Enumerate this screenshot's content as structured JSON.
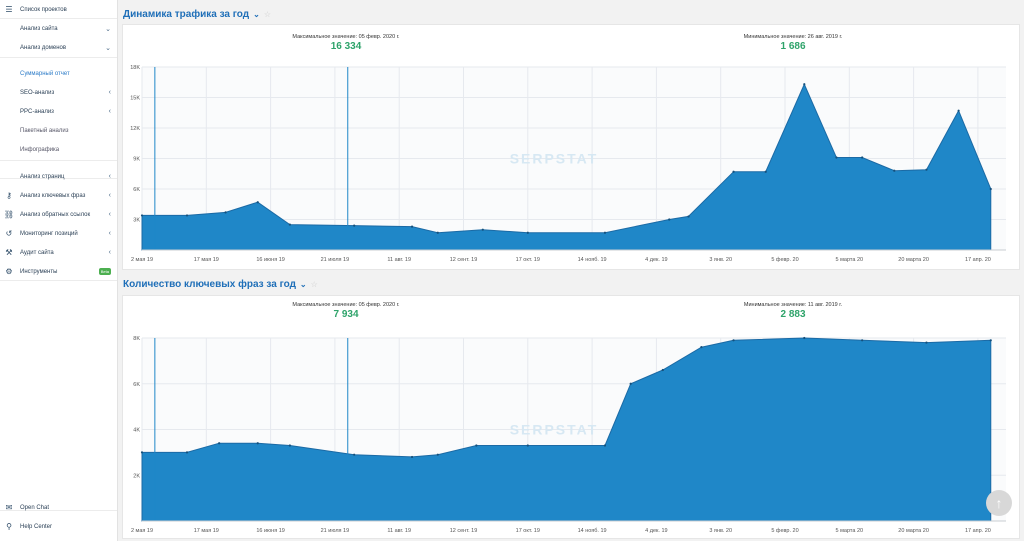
{
  "sidebar": {
    "items": [
      {
        "label": "Список проектов",
        "icon": "menu-icon",
        "chevron": "",
        "y": 0,
        "x": 20
      },
      {
        "label": "Анализ сайта",
        "icon": "",
        "chevron": "⌄",
        "y": 19,
        "x": 20
      },
      {
        "label": "Анализ доменов",
        "icon": "",
        "chevron": "⌄",
        "y": 38,
        "x": 20
      },
      {
        "label": "Суммарный отчет",
        "icon": "",
        "chevron": "",
        "y": 64,
        "x": 20,
        "selected": true
      },
      {
        "label": "SEO-анализ",
        "icon": "",
        "chevron": "‹",
        "y": 83,
        "x": 20
      },
      {
        "label": "PPC-анализ",
        "icon": "",
        "chevron": "‹",
        "y": 102,
        "x": 20
      },
      {
        "label": "Пакетный анализ",
        "icon": "",
        "chevron": "",
        "y": 121,
        "x": 20,
        "dim": true
      },
      {
        "label": "Инфографика",
        "icon": "",
        "chevron": "",
        "y": 140,
        "x": 20,
        "dim": true
      },
      {
        "label": "Анализ страниц",
        "icon": "",
        "chevron": "‹",
        "y": 167,
        "x": 20
      },
      {
        "label": "Анализ ключевых фраз",
        "icon": "key-icon",
        "chevron": "‹",
        "y": 186,
        "x": 20
      },
      {
        "label": "Анализ обратных ссылок",
        "icon": "link-icon",
        "chevron": "‹",
        "y": 205,
        "x": 20
      },
      {
        "label": "Мониторинг позиций",
        "icon": "history-icon",
        "chevron": "‹",
        "y": 224,
        "x": 20
      },
      {
        "label": "Аудит сайта",
        "icon": "wrench-icon",
        "chevron": "‹",
        "y": 243,
        "x": 20
      },
      {
        "label": "Инструменты",
        "icon": "gear-icon",
        "chevron": "",
        "y": 262,
        "x": 20,
        "badge": "Beta"
      },
      {
        "label": "Open Chat",
        "icon": "chat-icon",
        "chevron": "",
        "y": 498,
        "x": 20
      },
      {
        "label": "Help Center",
        "icon": "pin-icon",
        "chevron": "",
        "y": 517,
        "x": 20
      }
    ]
  },
  "traffic": {
    "title": "Динамика трафика за год",
    "max_label": "Максимальное значение: 05 февр. 2020 г.",
    "max_value": "16 334",
    "min_label": "Минимальное значение: 26 авг. 2019 г.",
    "min_value": "1 686"
  },
  "keywords": {
    "title": "Количество ключевых фраз за год",
    "max_label": "Максимальное значение: 05 февр. 2020 г.",
    "max_value": "7 934",
    "min_label": "Минимальное значение: 11 авг. 2019 г.",
    "min_value": "2 883"
  },
  "watermark": "SERPSTAT",
  "colors": {
    "accent": "#1f6fb8",
    "area": "#1f87c8",
    "line": "#1b6aa5",
    "positive": "#2ea36a"
  },
  "chart_data": [
    {
      "type": "area",
      "title": "Динамика трафика за год",
      "x": [
        "2 мая 19",
        "17 мая 19",
        "16 июня 19",
        "21 июля 19",
        "11 авг. 19",
        "12 сент. 19",
        "17 окт. 19",
        "14 нояб. 19",
        "4 дек. 19",
        "3 янв. 20",
        "5 февр. 20",
        "5 марта 20",
        "20 марта 20",
        "17 апр. 20"
      ],
      "yticks": [
        "3K",
        "6K",
        "9K",
        "12K",
        "15K",
        "18K"
      ],
      "ylim": [
        0,
        18000
      ],
      "points": [
        [
          0,
          3400
        ],
        [
          0.7,
          3400
        ],
        [
          1.3,
          3700
        ],
        [
          1.8,
          4700
        ],
        [
          2.3,
          2500
        ],
        [
          3.3,
          2400
        ],
        [
          4.2,
          2300
        ],
        [
          4.6,
          1700
        ],
        [
          5.3,
          2000
        ],
        [
          6,
          1700
        ],
        [
          7.2,
          1700
        ],
        [
          8.2,
          3000
        ],
        [
          8.5,
          3300
        ],
        [
          9.2,
          7700
        ],
        [
          9.7,
          7700
        ],
        [
          10.3,
          16300
        ],
        [
          10.8,
          9100
        ],
        [
          11.2,
          9100
        ],
        [
          11.7,
          7800
        ],
        [
          12.2,
          7900
        ],
        [
          12.7,
          13700
        ],
        [
          13.2,
          6000
        ]
      ],
      "markers": [
        0.2,
        3.2
      ]
    },
    {
      "type": "area",
      "title": "Количество ключевых фраз за год",
      "x": [
        "2 мая 19",
        "17 мая 19",
        "16 июня 19",
        "21 июля 19",
        "11 авг. 19",
        "12 сент. 19",
        "17 окт. 19",
        "14 нояб. 19",
        "4 дек. 19",
        "3 янв. 20",
        "5 февр. 20",
        "5 марта 20",
        "20 марта 20",
        "17 апр. 20"
      ],
      "yticks": [
        "2K",
        "4K",
        "6K",
        "8K"
      ],
      "ylim": [
        0,
        8000
      ],
      "points": [
        [
          0,
          3000
        ],
        [
          0.7,
          3000
        ],
        [
          1.2,
          3400
        ],
        [
          1.8,
          3400
        ],
        [
          2.3,
          3300
        ],
        [
          3.3,
          2900
        ],
        [
          4.2,
          2800
        ],
        [
          4.6,
          2900
        ],
        [
          5.2,
          3300
        ],
        [
          6,
          3300
        ],
        [
          7.2,
          3300
        ],
        [
          7.6,
          6000
        ],
        [
          8.1,
          6600
        ],
        [
          8.7,
          7600
        ],
        [
          9.2,
          7900
        ],
        [
          10.3,
          8000
        ],
        [
          11.2,
          7900
        ],
        [
          12.2,
          7800
        ],
        [
          13.2,
          7900
        ]
      ],
      "markers": [
        0.2,
        3.2
      ]
    }
  ]
}
